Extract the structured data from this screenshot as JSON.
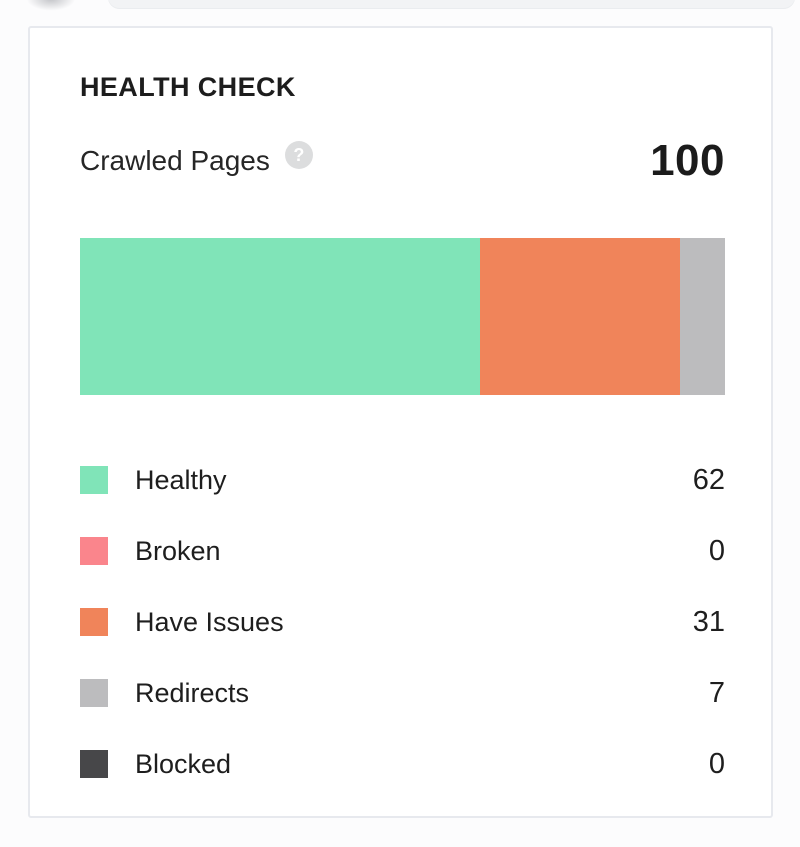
{
  "header": {
    "title": "HEALTH CHECK"
  },
  "summary": {
    "label": "Crawled Pages",
    "help_glyph": "?",
    "value": "100"
  },
  "chart_data": {
    "type": "bar",
    "variant": "horizontal-stacked",
    "title": "HEALTH CHECK",
    "total_label": "Crawled Pages",
    "total": 100,
    "legend_position": "below",
    "series": [
      {
        "name": "Healthy",
        "value": 62,
        "color": "#80e4b8"
      },
      {
        "name": "Broken",
        "value": 0,
        "color": "#fa858c"
      },
      {
        "name": "Have Issues",
        "value": 31,
        "color": "#f0845a"
      },
      {
        "name": "Redirects",
        "value": 7,
        "color": "#bcbcbe"
      },
      {
        "name": "Blocked",
        "value": 0,
        "color": "#474749"
      }
    ]
  }
}
